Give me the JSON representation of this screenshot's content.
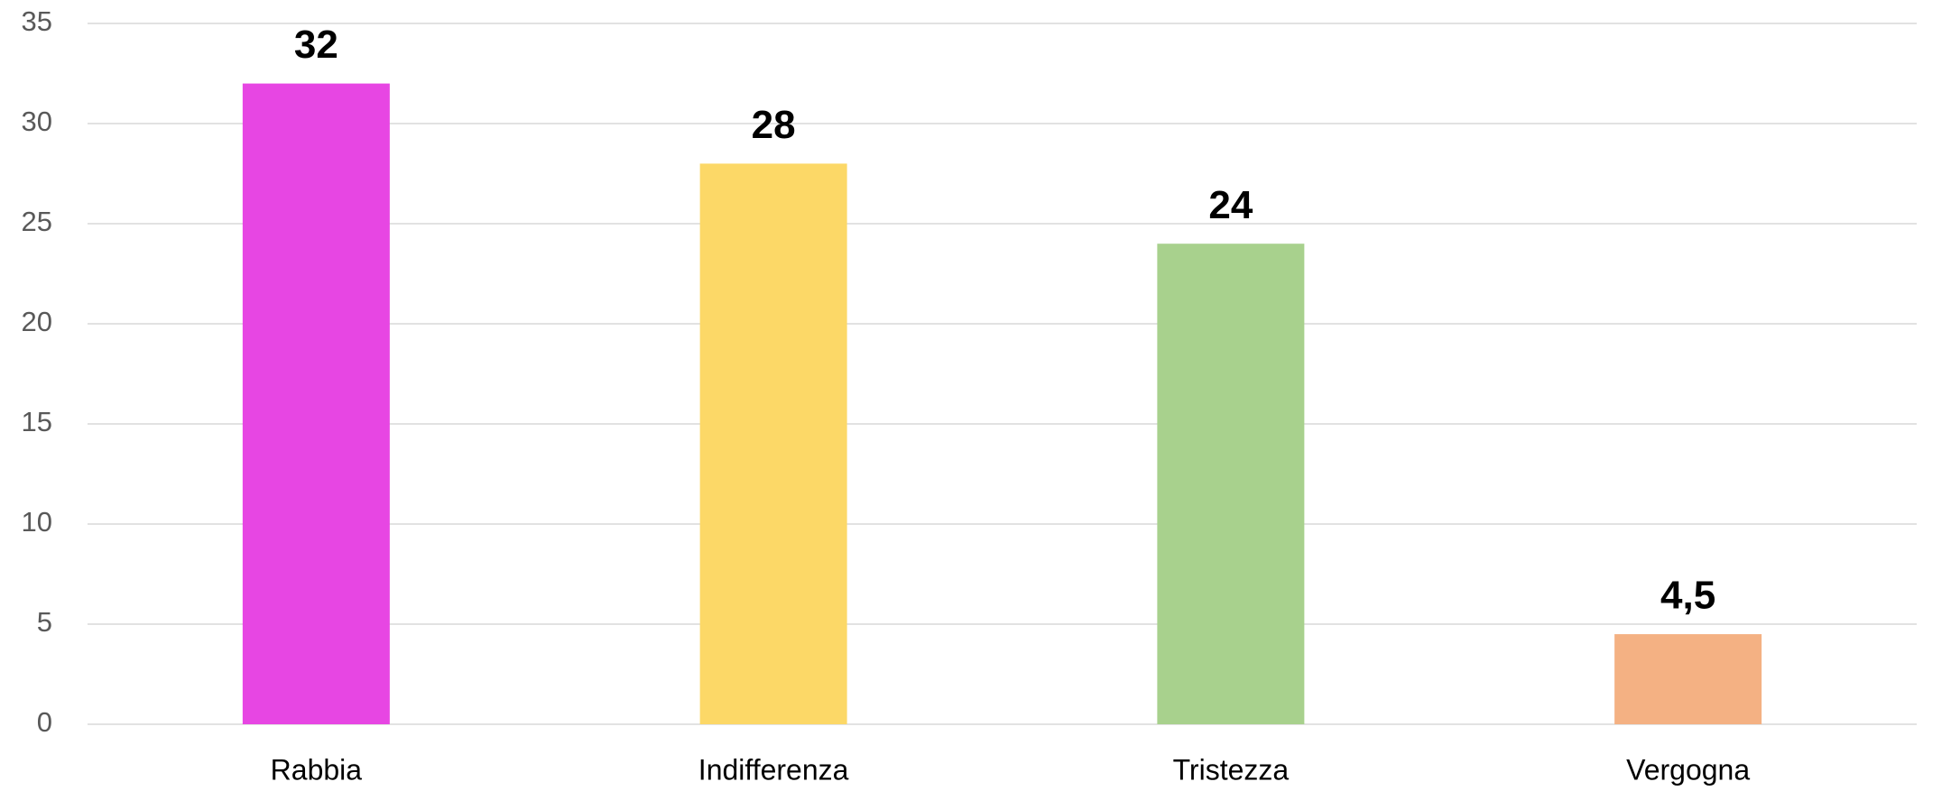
{
  "chart_data": {
    "type": "bar",
    "categories": [
      "Rabbia",
      "Indifferenza",
      "Tristezza",
      "Vergogna"
    ],
    "values": [
      32,
      28,
      24,
      4.5
    ],
    "value_labels": [
      "32",
      "28",
      "24",
      "4,5"
    ],
    "colors": [
      "#e746e3",
      "#fcd867",
      "#a8d18d",
      "#f4b183"
    ],
    "ylim": [
      0,
      35
    ],
    "yticks": [
      0,
      5,
      10,
      15,
      20,
      25,
      30,
      35
    ],
    "grid": true
  }
}
